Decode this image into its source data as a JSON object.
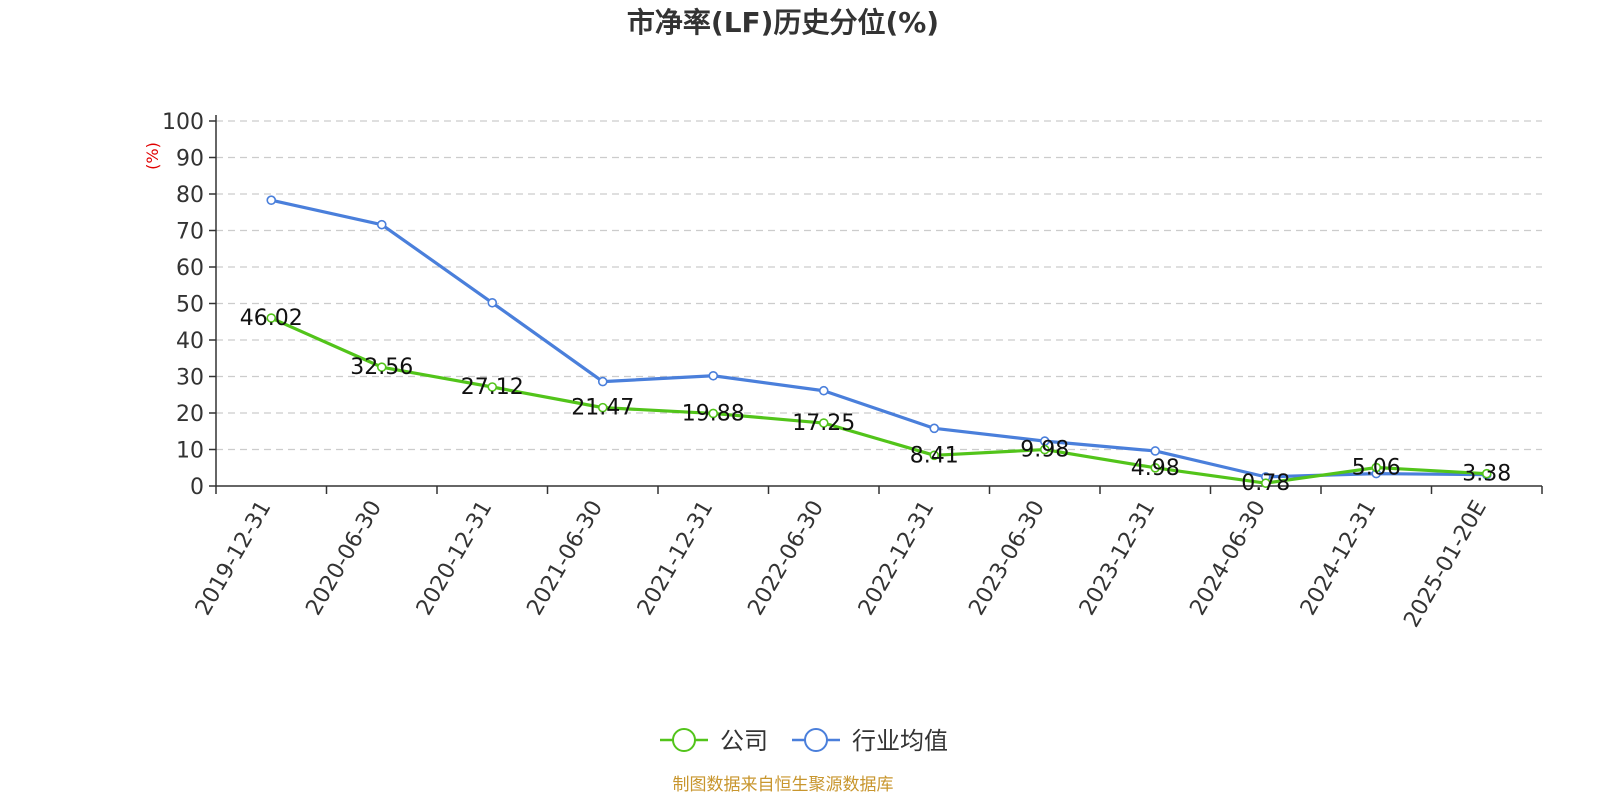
{
  "chart_data": {
    "type": "line",
    "title": "市净率(LF)历史分位(%)",
    "ylabel": "(%)",
    "ylim": [
      0,
      100
    ],
    "yticks": [
      0,
      10,
      20,
      30,
      40,
      50,
      60,
      70,
      80,
      90,
      100
    ],
    "grid": true,
    "legend_position": "bottom",
    "categories": [
      "2019-12-31",
      "2020-06-30",
      "2020-12-31",
      "2021-06-30",
      "2021-12-31",
      "2022-06-30",
      "2022-12-31",
      "2023-06-30",
      "2023-12-31",
      "2024-06-30",
      "2024-12-31",
      "2025-01-20E"
    ],
    "series": [
      {
        "name": "公司",
        "color": "#52c41a",
        "values": [
          46.02,
          32.56,
          27.12,
          21.47,
          19.88,
          17.25,
          8.41,
          9.98,
          4.98,
          0.78,
          5.06,
          3.38
        ],
        "labels": [
          "46.02",
          "32.56",
          "27.12",
          "21.47",
          "19.88",
          "17.25",
          "8.41",
          "9.98",
          "4.98",
          "0.78",
          "5.06",
          "3.38"
        ],
        "show_labels": true
      },
      {
        "name": "行业均值",
        "color": "#4a7fdb",
        "values": [
          78.3,
          71.6,
          50.2,
          28.6,
          30.2,
          26.1,
          15.8,
          12.3,
          9.6,
          2.5,
          3.4,
          3.1
        ],
        "show_labels": false
      }
    ],
    "unit_color": "#e00000"
  },
  "footer": {
    "source": "制图数据来自恒生聚源数据库",
    "source_color": "#c8962e"
  }
}
